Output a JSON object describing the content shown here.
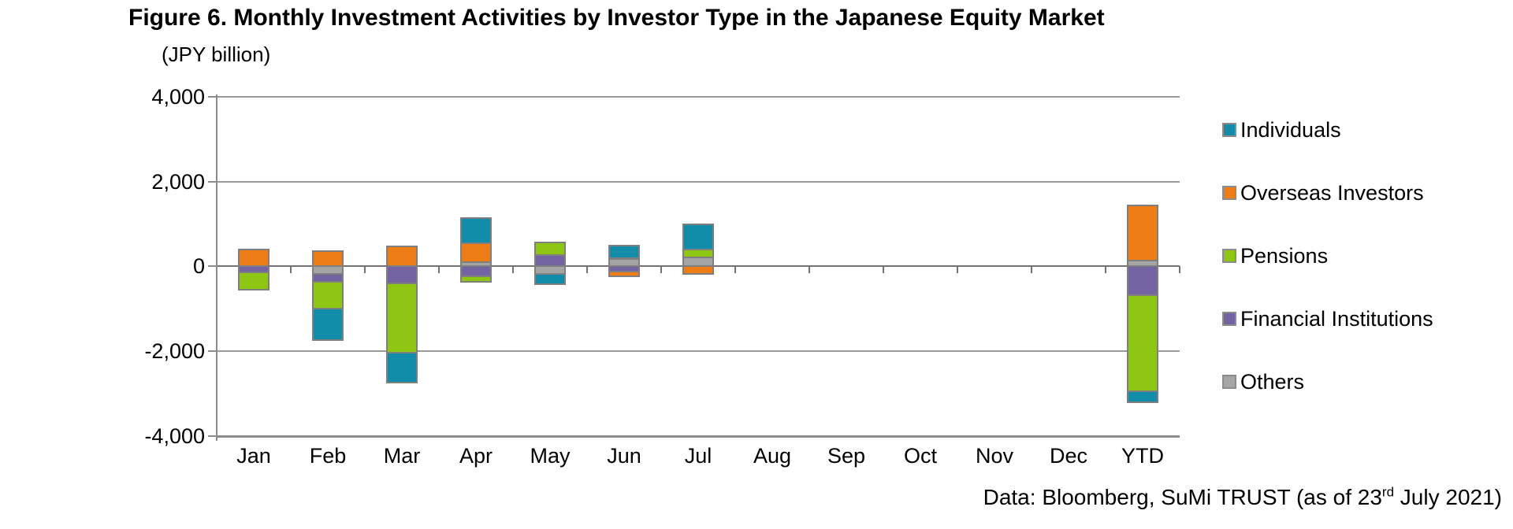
{
  "figure": {
    "title": "Figure 6. Monthly Investment Activities by Investor Type in the Japanese Equity Market",
    "unit_label": "(JPY billion)",
    "footer": {
      "prefix": "Data: Bloomberg, SuMi TRUST (as of 23",
      "superscript": "rd",
      "suffix": " July 2021)"
    }
  },
  "chart_data": {
    "type": "bar",
    "subtype": "stacked-column",
    "title": "Figure 6. Monthly Investment Activities by Investor Type in the Japanese Equity Market",
    "ylabel": "(JPY billion)",
    "xlabel": "",
    "ylim": [
      -4000,
      4000
    ],
    "grid": "horizontal",
    "legend_position": "right",
    "categories": [
      "Jan",
      "Feb",
      "Mar",
      "Apr",
      "May",
      "Jun",
      "Jul",
      "Aug",
      "Sep",
      "Oct",
      "Nov",
      "Dec",
      "YTD"
    ],
    "yticks": [
      {
        "value": 4000,
        "label": "4,000"
      },
      {
        "value": 2000,
        "label": "2,000"
      },
      {
        "value": 0,
        "label": "0"
      },
      {
        "value": -2000,
        "label": "-2,000"
      },
      {
        "value": -4000,
        "label": "-4,000"
      }
    ],
    "series": [
      {
        "name": "Individuals",
        "color": "#128DA9",
        "values": [
          0,
          -750,
          -710,
          580,
          -230,
          300,
          590,
          0,
          0,
          0,
          0,
          0,
          -250
        ]
      },
      {
        "name": "Overseas Investors",
        "color": "#EE7D16",
        "values": [
          400,
          350,
          470,
          450,
          0,
          -110,
          -190,
          0,
          0,
          0,
          0,
          0,
          1300
        ]
      },
      {
        "name": "Pensions",
        "color": "#8DC714",
        "values": [
          -410,
          -640,
          -1630,
          -130,
          310,
          0,
          190,
          0,
          0,
          0,
          0,
          0,
          -2270
        ]
      },
      {
        "name": "Financial Institutions",
        "color": "#7463A2",
        "values": [
          -140,
          -170,
          -400,
          -240,
          260,
          -120,
          0,
          0,
          0,
          0,
          0,
          0,
          -680
        ]
      },
      {
        "name": "Others",
        "color": "#A5A5A5",
        "values": [
          0,
          -190,
          0,
          100,
          -190,
          180,
          210,
          0,
          0,
          0,
          0,
          0,
          130
        ]
      }
    ],
    "stack_order_from_zero": [
      "Others",
      "Financial Institutions",
      "Pensions",
      "Overseas Investors",
      "Individuals"
    ],
    "segment_border_color": "#7F7F7F"
  }
}
